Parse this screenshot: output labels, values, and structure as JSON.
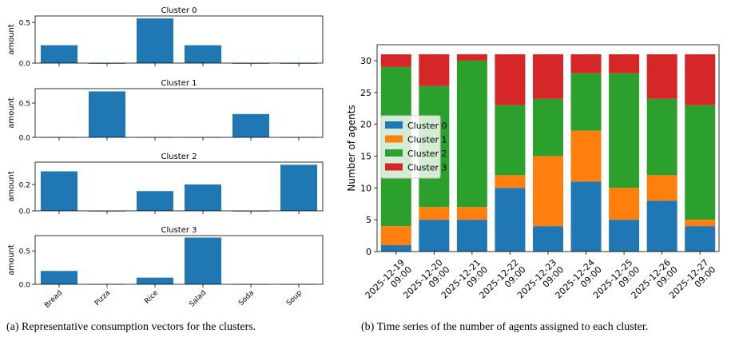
{
  "chart_data": [
    {
      "type": "bar",
      "title": "Cluster 0",
      "ylabel": "amount",
      "categories": [
        "Bread",
        "Pizza",
        "Rice",
        "Salad",
        "Soda",
        "Soup"
      ],
      "values": [
        0.22,
        0.0,
        0.55,
        0.22,
        0.0,
        0.0
      ],
      "ylim": [
        0,
        0.58
      ],
      "yticks": [
        0.0,
        0.5
      ],
      "ytick_labels": [
        "0.0",
        "0.5"
      ],
      "show_xticklabels": false
    },
    {
      "type": "bar",
      "title": "Cluster 1",
      "ylabel": "amount",
      "categories": [
        "Bread",
        "Pizza",
        "Rice",
        "Salad",
        "Soda",
        "Soup"
      ],
      "values": [
        0.005,
        0.67,
        0.005,
        0.005,
        0.34,
        0.005
      ],
      "ylim": [
        0,
        0.71
      ],
      "yticks": [
        0.0,
        0.5
      ],
      "ytick_labels": [
        "0.0",
        "0.5"
      ],
      "show_xticklabels": false
    },
    {
      "type": "bar",
      "title": "Cluster 2",
      "ylabel": "amount",
      "categories": [
        "Bread",
        "Pizza",
        "Rice",
        "Salad",
        "Soda",
        "Soup"
      ],
      "values": [
        0.3,
        0.0,
        0.15,
        0.2,
        0.0,
        0.35
      ],
      "ylim": [
        0,
        0.37
      ],
      "yticks": [
        0.0,
        0.2
      ],
      "ytick_labels": [
        "0.0",
        "0.2"
      ],
      "show_xticklabels": false
    },
    {
      "type": "bar",
      "title": "Cluster 3",
      "ylabel": "amount",
      "categories": [
        "Bread",
        "Pizza",
        "Rice",
        "Salad",
        "Soda",
        "Soup"
      ],
      "values": [
        0.2,
        0.005,
        0.1,
        0.7,
        0.005,
        0.005
      ],
      "ylim": [
        0,
        0.73
      ],
      "yticks": [
        0.0,
        0.5
      ],
      "ytick_labels": [
        "0.0",
        "0.5"
      ],
      "show_xticklabels": true
    },
    {
      "type": "bar",
      "stacked": true,
      "ylabel": "Number of agents",
      "categories": [
        "2025-12-19\n09:00",
        "2025-12-20\n09:00",
        "2025-12-21\n09:00",
        "2025-12-22\n09:00",
        "2025-12-23\n09:00",
        "2025-12-24\n09:00",
        "2025-12-25\n09:00",
        "2025-12-26\n09:00",
        "2025-12-27\n09:00"
      ],
      "series": [
        {
          "name": "Cluster 0",
          "color": "#1f77b4",
          "values": [
            1,
            5,
            5,
            10,
            4,
            11,
            5,
            8,
            4
          ]
        },
        {
          "name": "Cluster 1",
          "color": "#ff7f0e",
          "values": [
            3,
            2,
            2,
            2,
            11,
            8,
            5,
            4,
            1
          ]
        },
        {
          "name": "Cluster 2",
          "color": "#2ca02c",
          "values": [
            25,
            19,
            23,
            11,
            9,
            9,
            18,
            12,
            18
          ]
        },
        {
          "name": "Cluster 3",
          "color": "#d62728",
          "values": [
            2,
            5,
            1,
            8,
            7,
            3,
            3,
            7,
            8
          ]
        }
      ],
      "ylim": [
        0,
        32.5
      ],
      "yticks": [
        0,
        5,
        10,
        15,
        20,
        25,
        30
      ],
      "legend": "center-left"
    }
  ],
  "bar_color": "#1f77b4",
  "captions": {
    "a": "(a) Representative consumption vectors for the clusters.",
    "b": "(b) Time series of the number of agents assigned to each cluster."
  }
}
